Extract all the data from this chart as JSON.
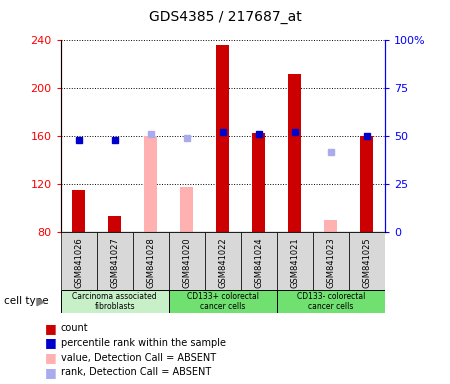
{
  "title": "GDS4385 / 217687_at",
  "samples": [
    "GSM841026",
    "GSM841027",
    "GSM841028",
    "GSM841020",
    "GSM841022",
    "GSM841024",
    "GSM841021",
    "GSM841023",
    "GSM841025"
  ],
  "count_values": [
    115,
    94,
    null,
    null,
    236,
    163,
    212,
    null,
    160
  ],
  "count_absent": [
    null,
    null,
    160,
    118,
    null,
    null,
    null,
    90,
    null
  ],
  "rank_values": [
    48,
    48,
    null,
    null,
    52,
    51,
    52,
    null,
    50
  ],
  "rank_absent": [
    null,
    null,
    51,
    49,
    null,
    null,
    null,
    42,
    null
  ],
  "ylim_left": [
    80,
    240
  ],
  "ylim_right": [
    0,
    100
  ],
  "yticks_left": [
    80,
    120,
    160,
    200,
    240
  ],
  "yticks_right": [
    0,
    25,
    50,
    75,
    100
  ],
  "yticklabels_right": [
    "0",
    "25",
    "50",
    "75",
    "100%"
  ],
  "count_color": "#cc0000",
  "count_absent_color": "#ffb0b0",
  "rank_color": "#0000cc",
  "rank_absent_color": "#aaaaee",
  "grid_color": "#000000",
  "sample_box_color": "#d8d8d8",
  "group_info": [
    {
      "label": "Carcinoma associated\nfibroblasts",
      "start": 0,
      "end": 2,
      "color": "#c8f0c8"
    },
    {
      "label": "CD133+ colorectal\ncancer cells",
      "start": 3,
      "end": 5,
      "color": "#70e070"
    },
    {
      "label": "CD133- colorectal\ncancer cells",
      "start": 6,
      "end": 8,
      "color": "#70e070"
    }
  ],
  "legend_items": [
    {
      "label": "count",
      "color": "#cc0000"
    },
    {
      "label": "percentile rank within the sample",
      "color": "#0000cc"
    },
    {
      "label": "value, Detection Call = ABSENT",
      "color": "#ffb0b0"
    },
    {
      "label": "rank, Detection Call = ABSENT",
      "color": "#aaaaee"
    }
  ]
}
